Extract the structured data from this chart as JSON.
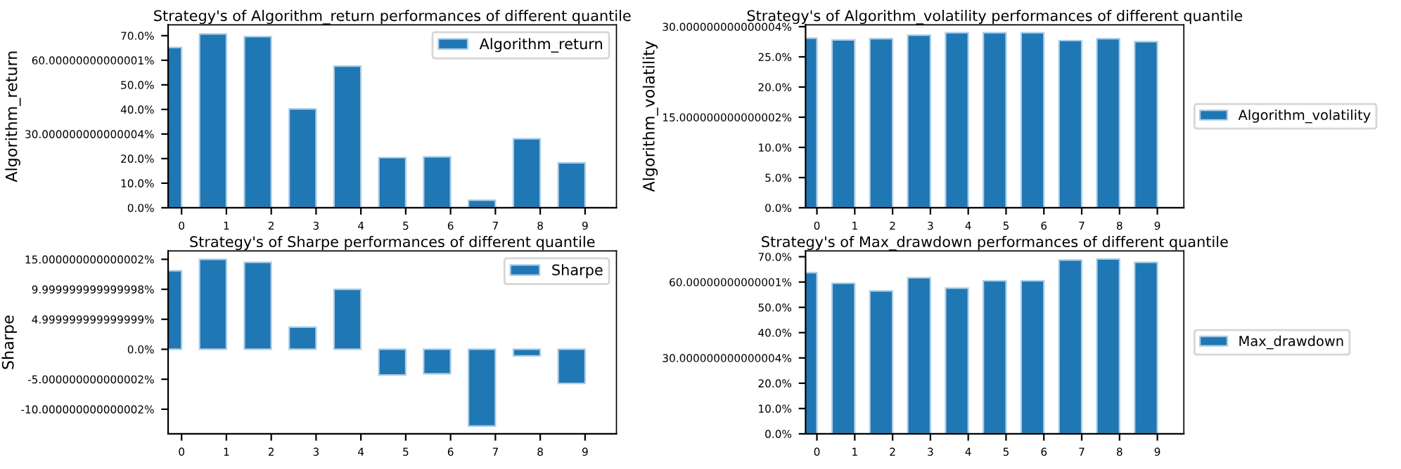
{
  "chart_data": [
    {
      "type": "bar",
      "title": "Strategy's of Algorithm_return performances of different quantile",
      "ylabel": "Algorithm_return",
      "categories": [
        "0",
        "1",
        "2",
        "3",
        "4",
        "5",
        "6",
        "7",
        "8",
        "9"
      ],
      "series": [
        {
          "name": "Algorithm_return",
          "color": "#1f77b4",
          "values": [
            65.2,
            70.7,
            69.6,
            40.2,
            57.6,
            20.4,
            20.7,
            3.1,
            28.1,
            18.3
          ]
        }
      ],
      "ylim": [
        0,
        74.4
      ],
      "yticks": [
        {
          "value": 0,
          "label": "0.0%"
        },
        {
          "value": 10,
          "label": "10.0%"
        },
        {
          "value": 20,
          "label": "20.0%"
        },
        {
          "value": 30,
          "label": "30.000000000000004%"
        },
        {
          "value": 40,
          "label": "40.0%"
        },
        {
          "value": 50,
          "label": "50.0%"
        },
        {
          "value": 60,
          "label": "60.00000000000001%"
        },
        {
          "value": 70,
          "label": "70.0%"
        }
      ],
      "legend": "top right"
    },
    {
      "type": "bar",
      "title": "Strategy's of Algorithm_volatility performances of different quantile",
      "ylabel": "Algorithm_volatility",
      "categories": [
        "0",
        "1",
        "2",
        "3",
        "4",
        "5",
        "6",
        "7",
        "8",
        "9"
      ],
      "series": [
        {
          "name": "Algorithm_volatility",
          "color": "#1f77b4",
          "values": [
            28.1,
            27.8,
            28.0,
            28.6,
            29.0,
            29.0,
            29.0,
            27.7,
            28.0,
            27.5
          ]
        }
      ],
      "ylim": [
        0,
        30.3
      ],
      "yticks": [
        {
          "value": 0,
          "label": "0.0%"
        },
        {
          "value": 5,
          "label": "5.0%"
        },
        {
          "value": 10,
          "label": "10.0%"
        },
        {
          "value": 15,
          "label": "15.000000000000002%"
        },
        {
          "value": 20,
          "label": "20.0%"
        },
        {
          "value": 25,
          "label": "25.0%"
        },
        {
          "value": 30,
          "label": "30.000000000000004%"
        }
      ],
      "legend": "right"
    },
    {
      "type": "bar",
      "title": "Strategy's of Sharpe performances of different quantile",
      "ylabel": "Sharpe",
      "categories": [
        "0",
        "1",
        "2",
        "3",
        "4",
        "5",
        "6",
        "7",
        "8",
        "9"
      ],
      "series": [
        {
          "name": "Sharpe",
          "color": "#1f77b4",
          "values": [
            13.1,
            15.0,
            14.5,
            3.7,
            10.0,
            -4.3,
            -4.1,
            -12.8,
            -1.1,
            -5.7
          ]
        }
      ],
      "ylim": [
        -14.1,
        16.4
      ],
      "yticks": [
        {
          "value": -10,
          "label": "-10.000000000000002%"
        },
        {
          "value": -5,
          "label": "-5.000000000000002%"
        },
        {
          "value": 0,
          "label": "0.0%"
        },
        {
          "value": 5,
          "label": "4.999999999999999%"
        },
        {
          "value": 10,
          "label": "9.999999999999998%"
        },
        {
          "value": 15,
          "label": "15.000000000000002%"
        }
      ],
      "legend": "top right"
    },
    {
      "type": "bar",
      "title": "Strategy's of Max_drawdown performances of different quantile",
      "categories": [
        "0",
        "1",
        "2",
        "3",
        "4",
        "5",
        "6",
        "7",
        "8",
        "9"
      ],
      "series": [
        {
          "name": "Max_drawdown",
          "color": "#1f77b4",
          "values": [
            63.7,
            59.5,
            56.5,
            61.7,
            57.6,
            60.5,
            60.5,
            68.7,
            69.1,
            67.8
          ]
        }
      ],
      "ylim": [
        0,
        72.3
      ],
      "yticks": [
        {
          "value": 0,
          "label": "0.0%"
        },
        {
          "value": 10,
          "label": "10.0%"
        },
        {
          "value": 20,
          "label": "20.0%"
        },
        {
          "value": 30,
          "label": "30.000000000000004%"
        },
        {
          "value": 40,
          "label": "40.0%"
        },
        {
          "value": 50,
          "label": "50.0%"
        },
        {
          "value": 60,
          "label": "60.00000000000001%"
        },
        {
          "value": 70,
          "label": "70.0%"
        }
      ],
      "legend": "right"
    }
  ]
}
